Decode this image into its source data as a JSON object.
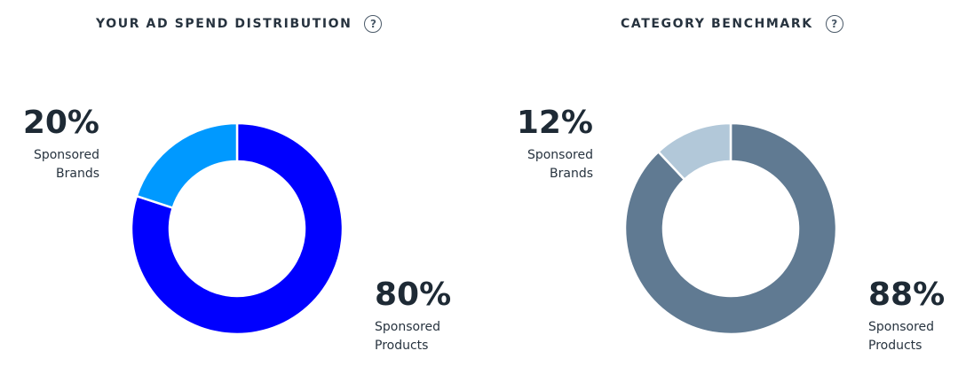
{
  "chart_data": [
    {
      "type": "pie",
      "title": "YOUR AD SPEND DISTRIBUTION",
      "categories": [
        "Sponsored Products",
        "Sponsored Brands"
      ],
      "values": [
        80,
        20
      ],
      "colors": [
        "#0000ff",
        "#0099ff"
      ],
      "labels": {
        "brands_pct": "20%",
        "brands_label_1": "Sponsored",
        "brands_label_2": "Brands",
        "products_pct": "80%",
        "products_label_1": "Sponsored",
        "products_label_2": "Products"
      }
    },
    {
      "type": "pie",
      "title": "CATEGORY BENCHMARK",
      "categories": [
        "Sponsored Products",
        "Sponsored Brands"
      ],
      "values": [
        88,
        12
      ],
      "colors": [
        "#607a92",
        "#b2c8d9"
      ],
      "labels": {
        "brands_pct": "12%",
        "brands_label_1": "Sponsored",
        "brands_label_2": "Brands",
        "products_pct": "88%",
        "products_label_1": "Sponsored",
        "products_label_2": "Products"
      }
    }
  ],
  "help_icon": {
    "glyph": "?",
    "icon": "question-circle-icon"
  }
}
